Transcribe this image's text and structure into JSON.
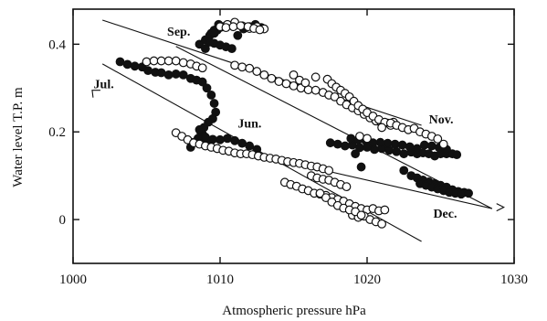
{
  "chart_data": {
    "type": "scatter",
    "xlabel": "Atmospheric pressure  hPa",
    "ylabel": "Water level  T.P. m",
    "xlim": [
      1000,
      1030
    ],
    "ylim": [
      -0.1,
      0.48
    ],
    "x_ticks": [
      "1000",
      "1010",
      "1020",
      "1030"
    ],
    "y_ticks": [
      "0",
      "0.2",
      "0.4"
    ],
    "grid": false,
    "legend": "none",
    "marker_colors": {
      "filled": "#111111",
      "open": "#ffffff",
      "outline": "#111111"
    },
    "annotations": [
      {
        "text": "Sep.",
        "x": 1006.4,
        "y": 0.43
      },
      {
        "text": "Jul.",
        "x": 1001.4,
        "y": 0.31
      },
      {
        "text": "Jun.",
        "x": 1011.2,
        "y": 0.22
      },
      {
        "text": "Nov.",
        "x": 1024.2,
        "y": 0.23
      },
      {
        "text": "Dec.",
        "x": 1024.5,
        "y": 0.015
      }
    ],
    "trend_lines": [
      {
        "x": [
          1002.0,
          1023.7
        ],
        "y": [
          0.455,
          0.215
        ]
      },
      {
        "x": [
          1002.0,
          1023.7
        ],
        "y": [
          0.355,
          -0.05
        ]
      },
      {
        "x": [
          1007.0,
          1028.5
        ],
        "y": [
          0.395,
          0.025
        ]
      },
      {
        "x": [
          1011.5,
          1028.5
        ],
        "y": [
          0.155,
          0.025
        ]
      }
    ],
    "arrow_ends": [
      {
        "x": 1001.3,
        "y": 0.295,
        "direction": "upper-left"
      },
      {
        "x": 1029.3,
        "y": 0.028,
        "direction": "right"
      }
    ],
    "series": [
      {
        "marker": "filled",
        "x": [
          1003.2,
          1003.7,
          1004.2,
          1004.7,
          1005.1,
          1005.6,
          1006.0,
          1006.5,
          1007.0,
          1007.5,
          1008.0,
          1008.4,
          1008.8,
          1009.1,
          1009.4,
          1009.6,
          1009.7,
          1009.5,
          1009.2,
          1008.9,
          1008.7,
          1008.8,
          1009.0,
          1008.8,
          1008.6,
          1008.9,
          1009.1,
          1008.6,
          1008.2,
          1008.0,
          1008.5,
          1009.0,
          1009.5,
          1010.0,
          1010.5,
          1011.0,
          1011.5,
          1012.0,
          1012.5,
          1008.6,
          1009.0,
          1009.4,
          1009.8,
          1010.2,
          1009.9,
          1009.6,
          1009.3,
          1009.6,
          1010.0,
          1010.4,
          1010.8,
          1011.2,
          1011.6,
          1012.0,
          1012.4,
          1012.8,
          1010.0,
          1009.8,
          1009.6,
          1009.3,
          1009.0,
          1017.5,
          1018.0,
          1018.5,
          1019.0,
          1019.5,
          1020.0,
          1020.5,
          1021.0,
          1021.5,
          1022.0,
          1022.5,
          1023.0,
          1023.4,
          1023.8,
          1024.2,
          1024.6,
          1025.0,
          1025.4,
          1025.8,
          1026.1,
          1025.4,
          1024.9,
          1024.4,
          1023.9,
          1023.4,
          1022.9,
          1022.4,
          1021.9,
          1021.4,
          1020.9,
          1020.4,
          1019.9,
          1019.4,
          1018.9,
          1019.2,
          1019.6,
          1022.5,
          1023.0,
          1023.4,
          1023.8,
          1024.2,
          1024.6,
          1025.0,
          1025.4,
          1025.8,
          1026.2,
          1026.6,
          1026.9,
          1023.6,
          1024.0,
          1024.4,
          1024.8,
          1025.2,
          1025.6,
          1026.0,
          1026.4
        ],
        "y": [
          0.36,
          0.354,
          0.35,
          0.348,
          0.34,
          0.336,
          0.335,
          0.33,
          0.332,
          0.33,
          0.322,
          0.318,
          0.314,
          0.3,
          0.284,
          0.265,
          0.245,
          0.23,
          0.222,
          0.21,
          0.198,
          0.186,
          0.176,
          0.195,
          0.205,
          0.19,
          0.178,
          0.185,
          0.176,
          0.165,
          0.185,
          0.188,
          0.183,
          0.182,
          0.185,
          0.18,
          0.174,
          0.168,
          0.16,
          0.4,
          0.41,
          0.425,
          0.432,
          0.44,
          0.445,
          0.432,
          0.42,
          0.402,
          0.398,
          0.394,
          0.39,
          0.42,
          0.435,
          0.44,
          0.445,
          0.438,
          0.438,
          0.435,
          0.425,
          0.405,
          0.39,
          0.175,
          0.172,
          0.168,
          0.17,
          0.164,
          0.165,
          0.16,
          0.162,
          0.158,
          0.155,
          0.15,
          0.154,
          0.15,
          0.152,
          0.15,
          0.145,
          0.15,
          0.15,
          0.15,
          0.148,
          0.16,
          0.164,
          0.168,
          0.17,
          0.162,
          0.166,
          0.17,
          0.172,
          0.174,
          0.176,
          0.175,
          0.18,
          0.182,
          0.185,
          0.15,
          0.12,
          0.112,
          0.1,
          0.095,
          0.09,
          0.086,
          0.082,
          0.078,
          0.074,
          0.068,
          0.064,
          0.062,
          0.06,
          0.082,
          0.078,
          0.074,
          0.07,
          0.066,
          0.062,
          0.06,
          0.058
        ]
      },
      {
        "marker": "open",
        "x": [
          1005.0,
          1005.5,
          1006.0,
          1006.5,
          1007.0,
          1007.5,
          1008.0,
          1008.4,
          1008.8,
          1011.0,
          1011.5,
          1012.0,
          1012.5,
          1013.0,
          1013.5,
          1014.0,
          1014.5,
          1015.0,
          1015.5,
          1016.0,
          1016.5,
          1017.0,
          1017.4,
          1017.8,
          1018.2,
          1018.6,
          1019.0,
          1019.4,
          1019.8,
          1020.2,
          1020.6,
          1021.0,
          1021.4,
          1021.6,
          1021.8,
          1015.0,
          1015.4,
          1015.8,
          1016.5,
          1017.3,
          1017.6,
          1017.9,
          1018.2,
          1018.5,
          1018.8,
          1019.1,
          1019.4,
          1019.7,
          1020.0,
          1020.4,
          1020.8,
          1021.2,
          1021.6,
          1022.0,
          1022.4,
          1022.8,
          1019.5,
          1020.0,
          1021.0,
          1023.2,
          1023.6,
          1024.0,
          1024.4,
          1024.8,
          1025.2,
          1010.0,
          1010.5,
          1011.0,
          1011.5,
          1012.0,
          1012.5,
          1013.0,
          1010.4,
          1010.9,
          1011.4,
          1011.9,
          1012.3,
          1012.7,
          1007.0,
          1007.4,
          1007.8,
          1008.2,
          1008.6,
          1009.0,
          1009.4,
          1009.8,
          1010.2,
          1010.6,
          1011.0,
          1011.4,
          1011.8,
          1012.2,
          1012.6,
          1013.0,
          1013.4,
          1013.8,
          1014.2,
          1014.6,
          1015.0,
          1015.4,
          1015.8,
          1016.2,
          1016.6,
          1017.0,
          1017.4,
          1014.4,
          1014.8,
          1015.2,
          1015.6,
          1016.0,
          1016.4,
          1016.8,
          1017.2,
          1017.6,
          1018.0,
          1018.4,
          1018.8,
          1019.2,
          1019.6,
          1020.0,
          1020.4,
          1020.8,
          1021.2,
          1019.0,
          1019.4,
          1019.8,
          1020.2,
          1020.6,
          1021.0,
          1016.2,
          1016.6,
          1017.0,
          1017.4,
          1017.8,
          1018.2,
          1018.6,
          1016.8,
          1017.2,
          1017.6,
          1018.0,
          1018.4,
          1018.8,
          1019.2,
          1019.6
        ],
        "y": [
          0.36,
          0.362,
          0.362,
          0.362,
          0.362,
          0.358,
          0.355,
          0.35,
          0.346,
          0.352,
          0.348,
          0.345,
          0.338,
          0.33,
          0.322,
          0.315,
          0.31,
          0.305,
          0.3,
          0.296,
          0.295,
          0.29,
          0.284,
          0.28,
          0.27,
          0.262,
          0.255,
          0.248,
          0.24,
          0.232,
          0.225,
          0.218,
          0.22,
          0.215,
          0.222,
          0.33,
          0.318,
          0.312,
          0.325,
          0.32,
          0.31,
          0.302,
          0.295,
          0.288,
          0.28,
          0.27,
          0.26,
          0.252,
          0.244,
          0.236,
          0.228,
          0.222,
          0.22,
          0.215,
          0.21,
          0.205,
          0.19,
          0.185,
          0.21,
          0.208,
          0.2,
          0.195,
          0.19,
          0.184,
          0.172,
          0.44,
          0.445,
          0.45,
          0.442,
          0.436,
          0.44,
          0.435,
          0.438,
          0.44,
          0.442,
          0.44,
          0.436,
          0.433,
          0.198,
          0.19,
          0.182,
          0.175,
          0.172,
          0.168,
          0.165,
          0.162,
          0.158,
          0.156,
          0.152,
          0.15,
          0.15,
          0.148,
          0.145,
          0.142,
          0.14,
          0.138,
          0.135,
          0.132,
          0.13,
          0.128,
          0.125,
          0.122,
          0.12,
          0.116,
          0.112,
          0.085,
          0.08,
          0.076,
          0.07,
          0.066,
          0.06,
          0.058,
          0.055,
          0.05,
          0.046,
          0.042,
          0.036,
          0.03,
          0.025,
          0.022,
          0.025,
          0.02,
          0.022,
          0.01,
          0.005,
          0.008,
          0.0,
          -0.005,
          -0.01,
          0.1,
          0.095,
          0.092,
          0.09,
          0.085,
          0.08,
          0.075,
          0.06,
          0.05,
          0.04,
          0.032,
          0.026,
          0.022,
          0.018,
          0.01
        ]
      }
    ]
  }
}
